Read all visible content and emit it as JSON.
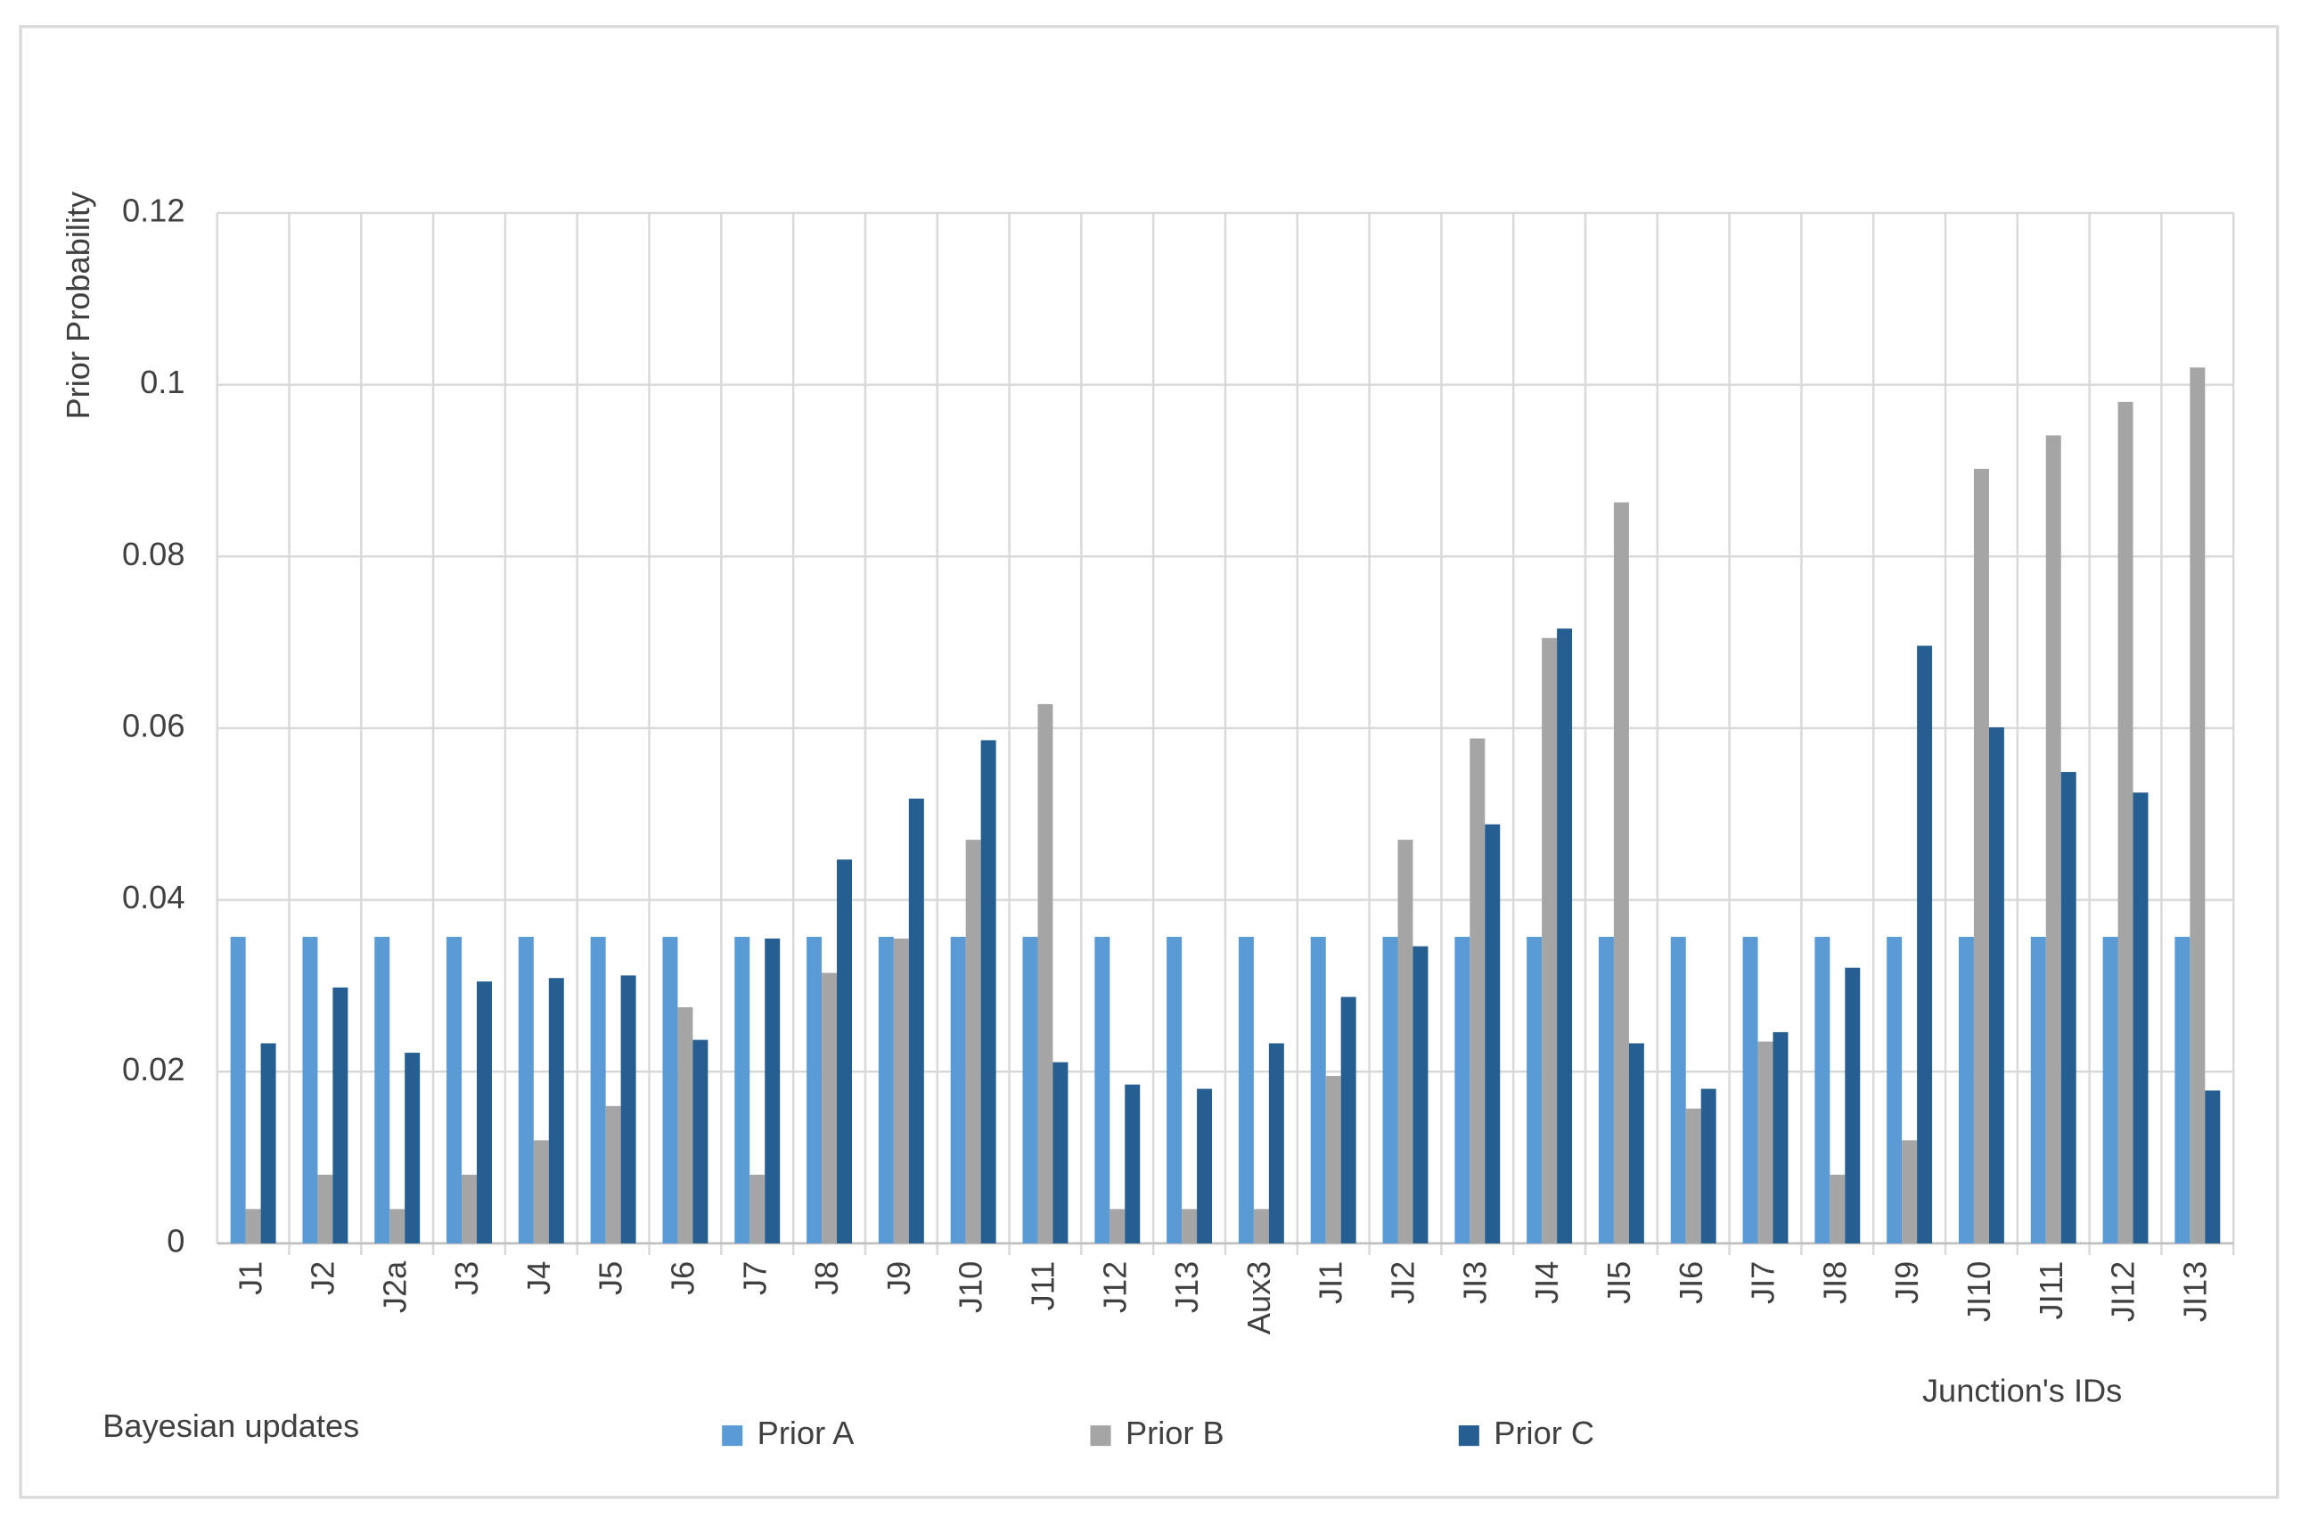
{
  "chart_data": {
    "type": "bar",
    "y_label": "Prior Probability",
    "x_label": "Junction's IDs",
    "annotation": "Bayesian updates",
    "categories": [
      "J1",
      "J2",
      "J2a",
      "J3",
      "J4",
      "J5",
      "J6",
      "J7",
      "J8",
      "J9",
      "J10",
      "J11",
      "J12",
      "J13",
      "Aux3",
      "JI1",
      "JI2",
      "JI3",
      "JI4",
      "JI5",
      "JI6",
      "JI7",
      "JI8",
      "JI9",
      "JI10",
      "JI11",
      "JI12",
      "JI13"
    ],
    "series": [
      {
        "name": "Prior A",
        "color": "#5b9bd5",
        "values": [
          0.0357,
          0.0357,
          0.0357,
          0.0357,
          0.0357,
          0.0357,
          0.0357,
          0.0357,
          0.0357,
          0.0357,
          0.0357,
          0.0357,
          0.0357,
          0.0357,
          0.0357,
          0.0357,
          0.0357,
          0.0357,
          0.0357,
          0.0357,
          0.0357,
          0.0357,
          0.0357,
          0.0357,
          0.0357,
          0.0357,
          0.0357,
          0.0357
        ]
      },
      {
        "name": "Prior B",
        "color": "#a5a5a5",
        "values": [
          0.004,
          0.008,
          0.004,
          0.008,
          0.012,
          0.016,
          0.0275,
          0.008,
          0.0315,
          0.0355,
          0.047,
          0.0628,
          0.004,
          0.004,
          0.004,
          0.0195,
          0.047,
          0.0588,
          0.0705,
          0.0863,
          0.0157,
          0.0235,
          0.008,
          0.012,
          0.0902,
          0.0941,
          0.098,
          0.102
        ]
      },
      {
        "name": "Prior C",
        "color": "#255e91",
        "values": [
          0.0233,
          0.0298,
          0.0222,
          0.0305,
          0.0309,
          0.0312,
          0.0237,
          0.0355,
          0.0447,
          0.0518,
          0.0586,
          0.0211,
          0.0185,
          0.018,
          0.0233,
          0.0287,
          0.0346,
          0.0488,
          0.0716,
          0.0233,
          0.018,
          0.0246,
          0.0321,
          0.0696,
          0.0601,
          0.0549,
          0.0525,
          0.0178
        ]
      }
    ],
    "ylim": [
      0,
      0.12
    ],
    "yticks": [
      0,
      0.02,
      0.04,
      0.06,
      0.08,
      0.1,
      0.12
    ],
    "grid": true,
    "legend": "bottom"
  }
}
